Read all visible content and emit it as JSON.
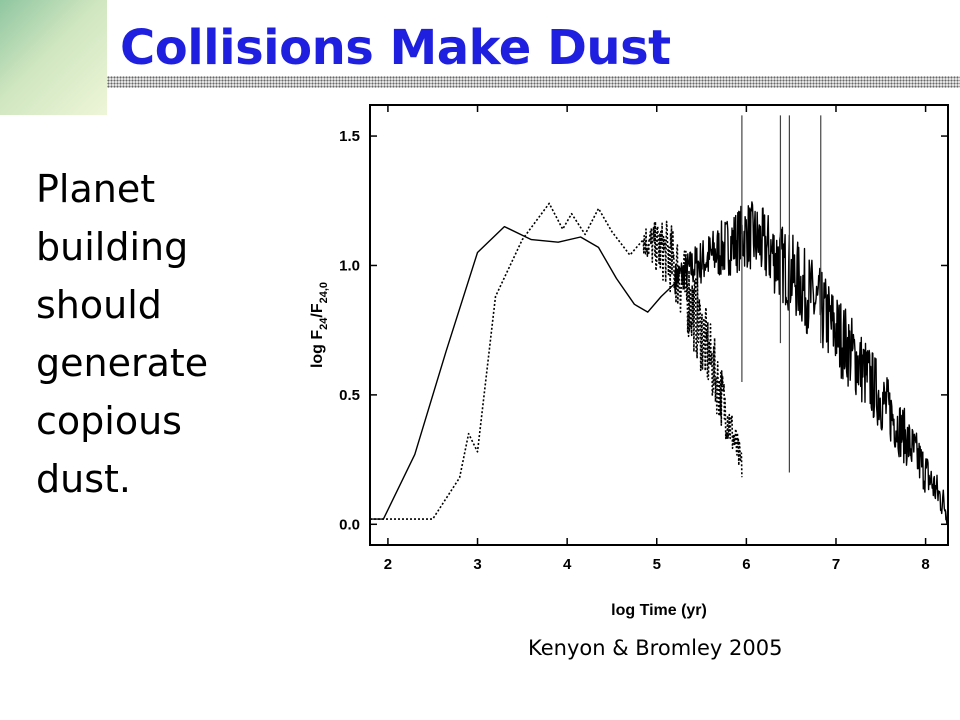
{
  "slide": {
    "title": "Collisions Make Dust",
    "body": "Planet\nbuilding\nshould\ngenerate\ncopious\ndust.",
    "citation": "Kenyon & Bromley 2005"
  },
  "colors": {
    "title": "#1f1fe0",
    "accent_corner": "#8fc6a0"
  },
  "chart_data": {
    "type": "line",
    "xlabel": "log Time (yr)",
    "ylabel_main": "log F",
    "ylabel_sub1": "24",
    "ylabel_mid": "/F",
    "ylabel_sub2": "24,0",
    "xlim": [
      1.8,
      8.25
    ],
    "ylim": [
      -0.08,
      1.62
    ],
    "xticks": [
      2,
      3,
      4,
      5,
      6,
      7,
      8
    ],
    "yticks": [
      0.0,
      0.5,
      1.0,
      1.5
    ],
    "ytick_labels": [
      "0.0",
      "0.5",
      "1.0",
      "1.5"
    ],
    "grid": false,
    "series": [
      {
        "style": "solid",
        "x": [
          1.8,
          1.95,
          2.3,
          2.65,
          3.0,
          3.3,
          3.6,
          3.9,
          4.15,
          4.35,
          4.55,
          4.75,
          4.9,
          5.05,
          5.2
        ],
        "y": [
          0.02,
          0.02,
          0.27,
          0.67,
          1.05,
          1.15,
          1.1,
          1.09,
          1.11,
          1.07,
          0.95,
          0.85,
          0.82,
          0.88,
          0.93
        ],
        "noisy": {
          "x_start": 5.2,
          "x_end": 8.25,
          "y_start": 0.95,
          "y_peak": 1.12,
          "x_peak": 6.0,
          "y_end": 0.05
        }
      },
      {
        "style": "dotted",
        "x": [
          1.8,
          2.5,
          2.8,
          2.9,
          3.0,
          3.2,
          3.5,
          3.8,
          3.95,
          4.05,
          4.2,
          4.35,
          4.5,
          4.7,
          4.85
        ],
        "y": [
          0.02,
          0.02,
          0.18,
          0.35,
          0.28,
          0.88,
          1.1,
          1.24,
          1.14,
          1.2,
          1.12,
          1.22,
          1.13,
          1.04,
          1.1
        ],
        "noisy": {
          "x_start": 4.85,
          "x_end": 5.95,
          "y_start": 1.1,
          "y_peak": 1.05,
          "x_peak": 5.1,
          "y_end": 0.22
        }
      }
    ]
  }
}
